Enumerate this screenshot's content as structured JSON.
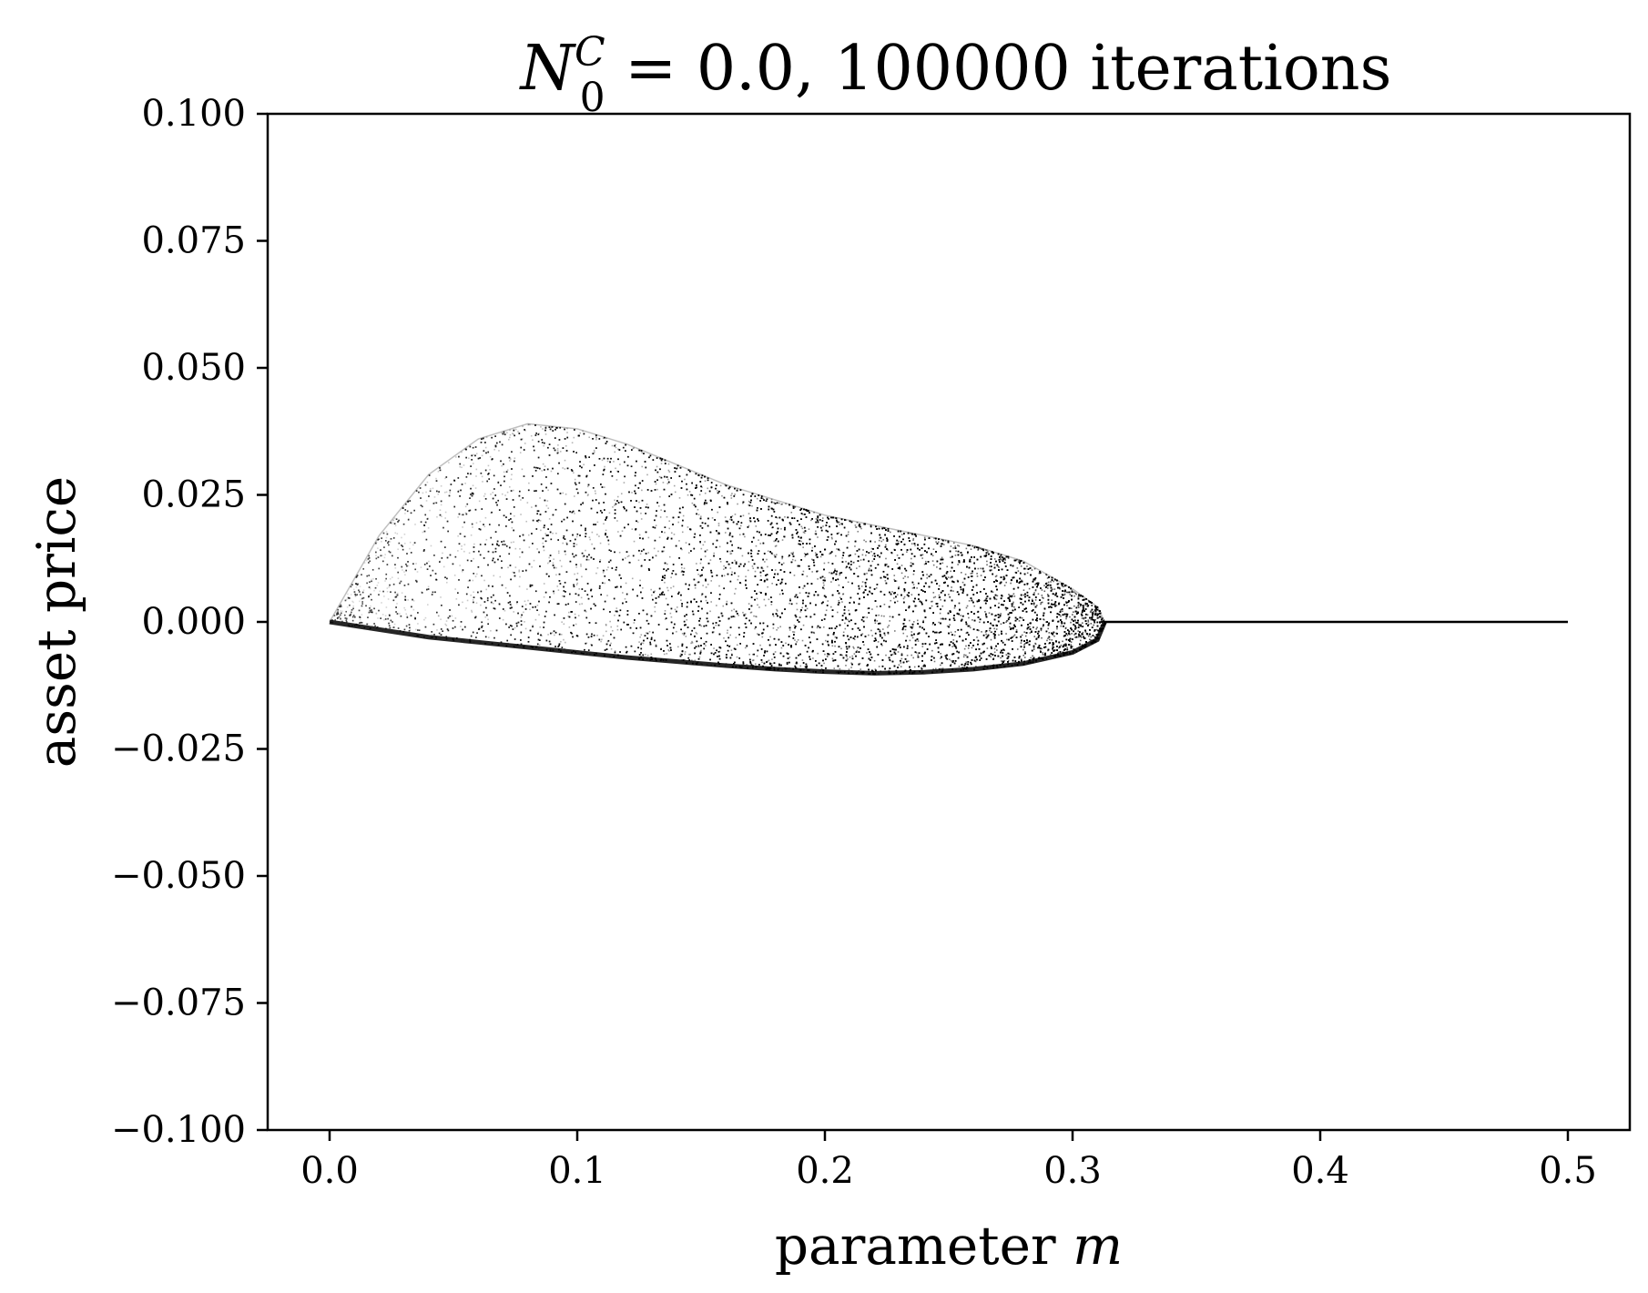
{
  "chart_data": {
    "type": "scatter",
    "title": {
      "main": "N",
      "superscript": "C",
      "subscript": "0",
      "rest": " = 0.0, 100000 iterations"
    },
    "xlabel": "parameter m",
    "ylabel": "asset price",
    "xlim": [
      -0.025,
      0.525
    ],
    "ylim": [
      -0.1,
      0.1
    ],
    "x_ticks": [
      0.0,
      0.1,
      0.2,
      0.3,
      0.4,
      0.5
    ],
    "x_tick_labels": [
      "0.0",
      "0.1",
      "0.2",
      "0.3",
      "0.4",
      "0.5"
    ],
    "y_ticks": [
      0.1,
      0.075,
      0.05,
      0.025,
      0.0,
      -0.025,
      -0.05,
      -0.075,
      -0.1
    ],
    "y_tick_labels": [
      "0.100",
      "0.075",
      "0.050",
      "0.025",
      "0.000",
      "−0.025",
      "−0.050",
      "−0.075",
      "−0.100"
    ],
    "grid": false,
    "marker_color": "#000000",
    "series": [
      {
        "kind": "point-cloud-region",
        "x_range": [
          0.0,
          0.313
        ],
        "upper_boundary": {
          "x": [
            0.0,
            0.02,
            0.04,
            0.06,
            0.08,
            0.1,
            0.12,
            0.14,
            0.16,
            0.18,
            0.2,
            0.22,
            0.24,
            0.26,
            0.28,
            0.3,
            0.31,
            0.313
          ],
          "y": [
            0.0,
            0.017,
            0.029,
            0.036,
            0.039,
            0.038,
            0.035,
            0.031,
            0.027,
            0.024,
            0.021,
            0.019,
            0.017,
            0.015,
            0.012,
            0.0065,
            0.003,
            0.0
          ]
        },
        "lower_boundary": {
          "x": [
            0.0,
            0.02,
            0.04,
            0.06,
            0.08,
            0.1,
            0.12,
            0.14,
            0.16,
            0.18,
            0.2,
            0.22,
            0.24,
            0.26,
            0.28,
            0.3,
            0.31,
            0.313
          ],
          "y": [
            0.0,
            -0.0015,
            -0.003,
            -0.004,
            -0.005,
            -0.006,
            -0.007,
            -0.0078,
            -0.0086,
            -0.0093,
            -0.0098,
            -0.0101,
            -0.0099,
            -0.0093,
            -0.0082,
            -0.006,
            -0.0035,
            0.0
          ]
        }
      },
      {
        "kind": "line",
        "x": [
          0.313,
          0.5
        ],
        "y": [
          0.0,
          0.0
        ]
      }
    ]
  }
}
